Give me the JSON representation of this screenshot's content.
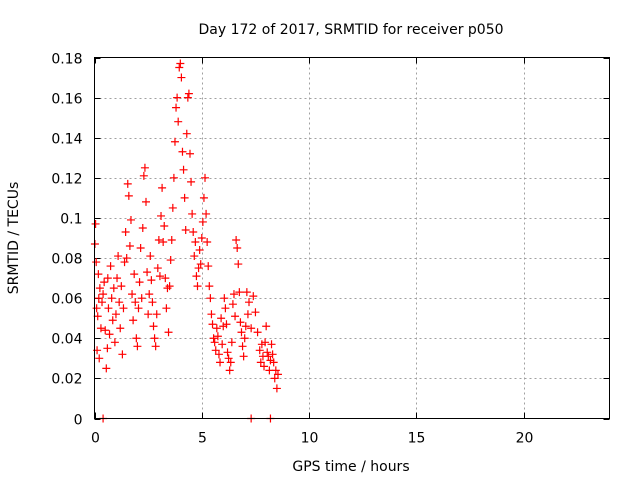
{
  "chart_data": {
    "type": "scatter",
    "title": "Day 172 of 2017, SRMTID for receiver p050",
    "xlabel": "GPS time / hours",
    "ylabel": "SRMTID / TECUs",
    "xlim": [
      0,
      24
    ],
    "ylim": [
      0,
      0.18
    ],
    "x_ticks": [
      0,
      5,
      10,
      15,
      20
    ],
    "x_tick_labels": [
      "0",
      "5",
      "10",
      "15",
      "20"
    ],
    "y_ticks": [
      0,
      0.02,
      0.04,
      0.06,
      0.08,
      0.1,
      0.12,
      0.14,
      0.16,
      0.18
    ],
    "y_tick_labels": [
      "0",
      "0.02",
      "0.04",
      "0.06",
      "0.08",
      "0.1",
      "0.12",
      "0.14",
      "0.16",
      "0.18"
    ],
    "grid": true,
    "marker": "+",
    "color": "#ff0000",
    "series": [
      {
        "name": "SRMTID",
        "points": [
          [
            0.02,
            0.087
          ],
          [
            0.05,
            0.097
          ],
          [
            0.08,
            0.078
          ],
          [
            0.1,
            0.055
          ],
          [
            0.12,
            0.034
          ],
          [
            0.15,
            0.051
          ],
          [
            0.18,
            0.072
          ],
          [
            0.2,
            0.06
          ],
          [
            0.22,
            0.03
          ],
          [
            0.25,
            0.065
          ],
          [
            0.3,
            0.045
          ],
          [
            0.35,
            0.058
          ],
          [
            0.4,
            0.062
          ],
          [
            0.45,
            0.068
          ],
          [
            0.5,
            0.044
          ],
          [
            0.55,
            0.025
          ],
          [
            0.6,
            0.035
          ],
          [
            0.62,
            0.07
          ],
          [
            0.65,
            0.055
          ],
          [
            0.7,
            0.042
          ],
          [
            0.75,
            0.076
          ],
          [
            0.8,
            0.06
          ],
          [
            0.85,
            0.049
          ],
          [
            0.9,
            0.065
          ],
          [
            0.95,
            0.038
          ],
          [
            1.0,
            0.052
          ],
          [
            1.05,
            0.07
          ],
          [
            1.1,
            0.081
          ],
          [
            1.15,
            0.058
          ],
          [
            1.2,
            0.045
          ],
          [
            1.25,
            0.066
          ],
          [
            1.3,
            0.032
          ],
          [
            1.35,
            0.055
          ],
          [
            1.4,
            0.078
          ],
          [
            1.45,
            0.093
          ],
          [
            1.5,
            0.08
          ],
          [
            1.55,
            0.117
          ],
          [
            1.6,
            0.111
          ],
          [
            1.65,
            0.086
          ],
          [
            1.7,
            0.099
          ],
          [
            1.75,
            0.062
          ],
          [
            1.8,
            0.049
          ],
          [
            1.85,
            0.072
          ],
          [
            1.9,
            0.058
          ],
          [
            1.95,
            0.04
          ],
          [
            2.0,
            0.036
          ],
          [
            2.05,
            0.055
          ],
          [
            2.1,
            0.068
          ],
          [
            2.15,
            0.085
          ],
          [
            2.2,
            0.06
          ],
          [
            2.25,
            0.095
          ],
          [
            2.3,
            0.121
          ],
          [
            2.35,
            0.125
          ],
          [
            2.4,
            0.108
          ],
          [
            2.45,
            0.073
          ],
          [
            2.5,
            0.052
          ],
          [
            2.55,
            0.062
          ],
          [
            2.6,
            0.081
          ],
          [
            2.65,
            0.069
          ],
          [
            2.7,
            0.058
          ],
          [
            2.75,
            0.046
          ],
          [
            2.8,
            0.04
          ],
          [
            2.85,
            0.036
          ],
          [
            2.9,
            0.052
          ],
          [
            2.95,
            0.075
          ],
          [
            3.0,
            0.089
          ],
          [
            3.05,
            0.071
          ],
          [
            3.1,
            0.101
          ],
          [
            3.15,
            0.115
          ],
          [
            3.2,
            0.088
          ],
          [
            3.25,
            0.096
          ],
          [
            3.3,
            0.07
          ],
          [
            3.35,
            0.055
          ],
          [
            3.4,
            0.065
          ],
          [
            3.45,
            0.043
          ],
          [
            3.5,
            0.066
          ],
          [
            3.55,
            0.079
          ],
          [
            3.6,
            0.089
          ],
          [
            3.65,
            0.105
          ],
          [
            3.7,
            0.12
          ],
          [
            3.75,
            0.138
          ],
          [
            3.8,
            0.155
          ],
          [
            3.85,
            0.16
          ],
          [
            3.9,
            0.148
          ],
          [
            3.95,
            0.175
          ],
          [
            4.0,
            0.177
          ],
          [
            4.05,
            0.17
          ],
          [
            4.1,
            0.133
          ],
          [
            4.15,
            0.124
          ],
          [
            4.2,
            0.11
          ],
          [
            4.25,
            0.094
          ],
          [
            4.3,
            0.142
          ],
          [
            4.35,
            0.16
          ],
          [
            4.4,
            0.162
          ],
          [
            4.45,
            0.132
          ],
          [
            4.5,
            0.118
          ],
          [
            4.55,
            0.102
          ],
          [
            4.6,
            0.093
          ],
          [
            4.65,
            0.081
          ],
          [
            4.7,
            0.088
          ],
          [
            4.75,
            0.071
          ],
          [
            4.8,
            0.066
          ],
          [
            4.85,
            0.075
          ],
          [
            4.9,
            0.084
          ],
          [
            4.95,
            0.077
          ],
          [
            5.0,
            0.09
          ],
          [
            5.05,
            0.098
          ],
          [
            5.1,
            0.11
          ],
          [
            5.15,
            0.12
          ],
          [
            5.2,
            0.102
          ],
          [
            5.25,
            0.088
          ],
          [
            5.3,
            0.076
          ],
          [
            5.35,
            0.066
          ],
          [
            5.4,
            0.06
          ],
          [
            5.45,
            0.052
          ],
          [
            5.5,
            0.047
          ],
          [
            5.55,
            0.04
          ],
          [
            5.6,
            0.038
          ],
          [
            5.65,
            0.034
          ],
          [
            5.7,
            0.045
          ],
          [
            5.75,
            0.041
          ],
          [
            5.8,
            0.032
          ],
          [
            5.85,
            0.028
          ],
          [
            5.9,
            0.05
          ],
          [
            5.95,
            0.037
          ],
          [
            6.0,
            0.046
          ],
          [
            6.05,
            0.06
          ],
          [
            6.1,
            0.055
          ],
          [
            6.15,
            0.047
          ],
          [
            6.2,
            0.033
          ],
          [
            6.25,
            0.03
          ],
          [
            6.3,
            0.024
          ],
          [
            6.35,
            0.028
          ],
          [
            6.4,
            0.038
          ],
          [
            6.45,
            0.057
          ],
          [
            6.5,
            0.062
          ],
          [
            6.55,
            0.051
          ],
          [
            6.6,
            0.089
          ],
          [
            6.65,
            0.085
          ],
          [
            6.7,
            0.077
          ],
          [
            6.75,
            0.063
          ],
          [
            6.8,
            0.048
          ],
          [
            6.85,
            0.043
          ],
          [
            6.9,
            0.036
          ],
          [
            6.95,
            0.031
          ],
          [
            7.0,
            0.04
          ],
          [
            7.05,
            0.046
          ],
          [
            7.1,
            0.063
          ],
          [
            7.15,
            0.052
          ],
          [
            7.2,
            0.058
          ],
          [
            7.3,
            0.045
          ],
          [
            7.4,
            0.061
          ],
          [
            7.5,
            0.053
          ],
          [
            7.6,
            0.043
          ],
          [
            7.7,
            0.034
          ],
          [
            7.75,
            0.028
          ],
          [
            7.8,
            0.037
          ],
          [
            7.85,
            0.031
          ],
          [
            7.9,
            0.026
          ],
          [
            7.95,
            0.038
          ],
          [
            8.0,
            0.046
          ],
          [
            8.05,
            0.033
          ],
          [
            8.1,
            0.031
          ],
          [
            8.15,
            0.024
          ],
          [
            8.2,
            0.029
          ],
          [
            8.25,
            0.037
          ],
          [
            8.3,
            0.032
          ],
          [
            8.35,
            0.028
          ],
          [
            8.4,
            0.02
          ],
          [
            8.45,
            0.024
          ],
          [
            8.5,
            0.015
          ],
          [
            8.55,
            0.022
          ],
          [
            0.4,
            0.0
          ],
          [
            7.3,
            0.0
          ],
          [
            8.2,
            0.0
          ]
        ]
      }
    ]
  }
}
